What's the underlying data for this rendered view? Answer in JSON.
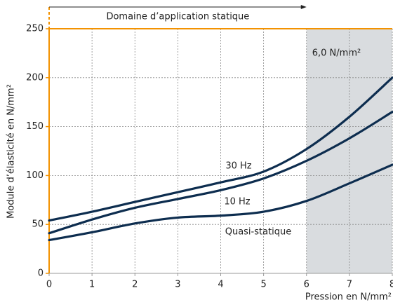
{
  "chart_data": {
    "type": "line",
    "x": [
      0,
      1,
      2,
      3,
      4,
      5,
      6,
      7,
      8
    ],
    "series": [
      {
        "name": "30 Hz",
        "color": "#0d2d4f",
        "values": [
          54,
          63,
          73,
          83,
          93,
          104,
          127,
          160,
          200
        ]
      },
      {
        "name": "10 Hz",
        "color": "#0d2d4f",
        "values": [
          41,
          55,
          67,
          76,
          85,
          97,
          115,
          138,
          165
        ]
      },
      {
        "name": "Quasi-statique",
        "color": "#0d2d4f",
        "values": [
          34,
          42,
          51,
          57,
          59,
          63,
          74,
          92,
          111
        ]
      }
    ],
    "xlim": [
      0,
      8
    ],
    "ylim": [
      0,
      250
    ],
    "xticks": [
      0,
      1,
      2,
      3,
      4,
      5,
      6,
      7,
      8
    ],
    "yticks": [
      0,
      50,
      100,
      150,
      200,
      250
    ],
    "xlabel": "Pression en N/mm²",
    "ylabel": "Module d’élasticité en N/mm²",
    "grid": true,
    "shade": {
      "x": [
        6,
        8
      ],
      "label": "6,0 N/mm²",
      "color": "#d9dcdf"
    },
    "range_annotation": {
      "x": [
        0,
        6
      ],
      "label": "Domaine d’application statique"
    },
    "axis_color": "#f39200"
  }
}
